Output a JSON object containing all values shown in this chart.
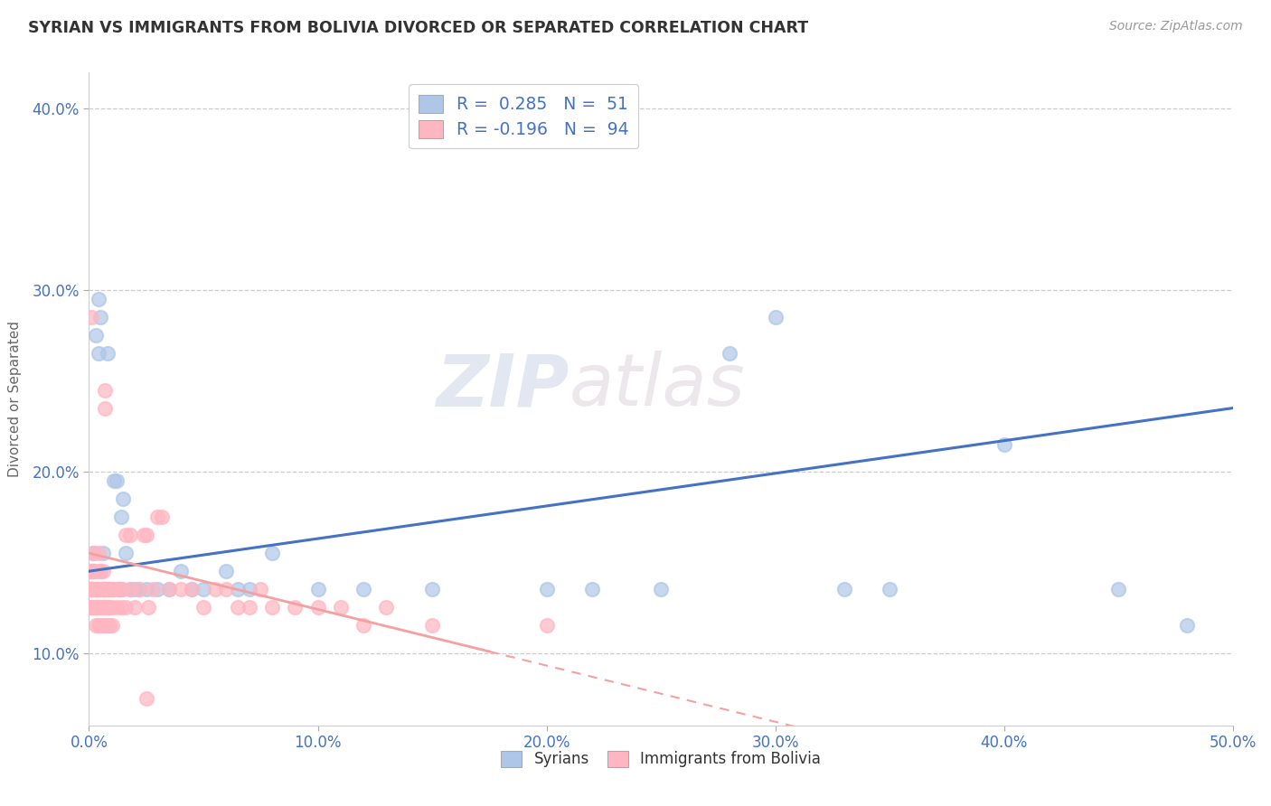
{
  "title": "SYRIAN VS IMMIGRANTS FROM BOLIVIA DIVORCED OR SEPARATED CORRELATION CHART",
  "source": "Source: ZipAtlas.com",
  "legend_labels": [
    "Syrians",
    "Immigrants from Bolivia"
  ],
  "ylabel_label": "Divorced or Separated",
  "syrians_color": "#AEC6E8",
  "bolivia_color": "#FFB6C1",
  "syrians_line_color": "#4472C4",
  "bolivia_line_color": "#F4A0A0",
  "watermark_part1": "ZIP",
  "watermark_part2": "atlas",
  "xlim": [
    0,
    0.5
  ],
  "ylim": [
    0.06,
    0.42
  ],
  "x_ticks": [
    0.0,
    0.1,
    0.2,
    0.3,
    0.4,
    0.5
  ],
  "y_ticks": [
    0.1,
    0.2,
    0.3,
    0.4
  ],
  "background_color": "#FFFFFF",
  "grid_color": "#CCCCCC",
  "tick_color": "#4472C4",
  "syrians_points": [
    [
      0.001,
      0.135
    ],
    [
      0.001,
      0.135
    ],
    [
      0.002,
      0.145
    ],
    [
      0.002,
      0.155
    ],
    [
      0.003,
      0.275
    ],
    [
      0.003,
      0.135
    ],
    [
      0.004,
      0.295
    ],
    [
      0.005,
      0.285
    ],
    [
      0.004,
      0.265
    ],
    [
      0.005,
      0.145
    ],
    [
      0.006,
      0.155
    ],
    [
      0.006,
      0.135
    ],
    [
      0.007,
      0.135
    ],
    [
      0.008,
      0.265
    ],
    [
      0.008,
      0.135
    ],
    [
      0.009,
      0.135
    ],
    [
      0.01,
      0.135
    ],
    [
      0.011,
      0.195
    ],
    [
      0.012,
      0.195
    ],
    [
      0.013,
      0.135
    ],
    [
      0.014,
      0.175
    ],
    [
      0.014,
      0.135
    ],
    [
      0.015,
      0.185
    ],
    [
      0.016,
      0.155
    ],
    [
      0.018,
      0.135
    ],
    [
      0.02,
      0.135
    ],
    [
      0.022,
      0.135
    ],
    [
      0.025,
      0.135
    ],
    [
      0.03,
      0.135
    ],
    [
      0.035,
      0.135
    ],
    [
      0.04,
      0.145
    ],
    [
      0.045,
      0.135
    ],
    [
      0.05,
      0.135
    ],
    [
      0.06,
      0.145
    ],
    [
      0.065,
      0.135
    ],
    [
      0.07,
      0.135
    ],
    [
      0.08,
      0.155
    ],
    [
      0.1,
      0.135
    ],
    [
      0.12,
      0.135
    ],
    [
      0.15,
      0.135
    ],
    [
      0.2,
      0.135
    ],
    [
      0.22,
      0.135
    ],
    [
      0.25,
      0.135
    ],
    [
      0.28,
      0.265
    ],
    [
      0.3,
      0.285
    ],
    [
      0.33,
      0.135
    ],
    [
      0.35,
      0.135
    ],
    [
      0.4,
      0.215
    ],
    [
      0.45,
      0.135
    ],
    [
      0.48,
      0.115
    ],
    [
      0.001,
      0.135
    ]
  ],
  "bolivia_points": [
    [
      0.001,
      0.135
    ],
    [
      0.001,
      0.135
    ],
    [
      0.001,
      0.145
    ],
    [
      0.001,
      0.125
    ],
    [
      0.002,
      0.135
    ],
    [
      0.002,
      0.125
    ],
    [
      0.002,
      0.135
    ],
    [
      0.002,
      0.145
    ],
    [
      0.003,
      0.135
    ],
    [
      0.003,
      0.125
    ],
    [
      0.003,
      0.135
    ],
    [
      0.003,
      0.145
    ],
    [
      0.003,
      0.125
    ],
    [
      0.004,
      0.135
    ],
    [
      0.004,
      0.125
    ],
    [
      0.004,
      0.135
    ],
    [
      0.004,
      0.155
    ],
    [
      0.005,
      0.135
    ],
    [
      0.005,
      0.125
    ],
    [
      0.005,
      0.135
    ],
    [
      0.005,
      0.145
    ],
    [
      0.006,
      0.135
    ],
    [
      0.006,
      0.125
    ],
    [
      0.006,
      0.135
    ],
    [
      0.006,
      0.145
    ],
    [
      0.007,
      0.135
    ],
    [
      0.007,
      0.125
    ],
    [
      0.007,
      0.135
    ],
    [
      0.007,
      0.245
    ],
    [
      0.007,
      0.235
    ],
    [
      0.008,
      0.135
    ],
    [
      0.008,
      0.125
    ],
    [
      0.008,
      0.135
    ],
    [
      0.008,
      0.125
    ],
    [
      0.009,
      0.135
    ],
    [
      0.009,
      0.125
    ],
    [
      0.01,
      0.135
    ],
    [
      0.01,
      0.125
    ],
    [
      0.011,
      0.135
    ],
    [
      0.012,
      0.125
    ],
    [
      0.013,
      0.135
    ],
    [
      0.014,
      0.125
    ],
    [
      0.015,
      0.135
    ],
    [
      0.016,
      0.125
    ],
    [
      0.018,
      0.135
    ],
    [
      0.02,
      0.125
    ],
    [
      0.022,
      0.135
    ],
    [
      0.024,
      0.165
    ],
    [
      0.025,
      0.165
    ],
    [
      0.026,
      0.125
    ],
    [
      0.028,
      0.135
    ],
    [
      0.03,
      0.175
    ],
    [
      0.032,
      0.175
    ],
    [
      0.035,
      0.135
    ],
    [
      0.04,
      0.135
    ],
    [
      0.045,
      0.135
    ],
    [
      0.05,
      0.125
    ],
    [
      0.055,
      0.135
    ],
    [
      0.06,
      0.135
    ],
    [
      0.065,
      0.125
    ],
    [
      0.07,
      0.125
    ],
    [
      0.075,
      0.135
    ],
    [
      0.08,
      0.125
    ],
    [
      0.09,
      0.125
    ],
    [
      0.1,
      0.125
    ],
    [
      0.11,
      0.125
    ],
    [
      0.12,
      0.115
    ],
    [
      0.13,
      0.125
    ],
    [
      0.15,
      0.115
    ],
    [
      0.2,
      0.115
    ],
    [
      0.001,
      0.285
    ],
    [
      0.001,
      0.145
    ],
    [
      0.001,
      0.125
    ],
    [
      0.001,
      0.135
    ],
    [
      0.002,
      0.155
    ],
    [
      0.002,
      0.135
    ],
    [
      0.002,
      0.125
    ],
    [
      0.003,
      0.115
    ],
    [
      0.003,
      0.125
    ],
    [
      0.003,
      0.135
    ],
    [
      0.004,
      0.115
    ],
    [
      0.004,
      0.125
    ],
    [
      0.005,
      0.115
    ],
    [
      0.005,
      0.125
    ],
    [
      0.006,
      0.115
    ],
    [
      0.006,
      0.125
    ],
    [
      0.007,
      0.115
    ],
    [
      0.007,
      0.125
    ],
    [
      0.008,
      0.115
    ],
    [
      0.009,
      0.115
    ],
    [
      0.01,
      0.115
    ],
    [
      0.016,
      0.165
    ],
    [
      0.018,
      0.165
    ],
    [
      0.025,
      0.075
    ]
  ]
}
